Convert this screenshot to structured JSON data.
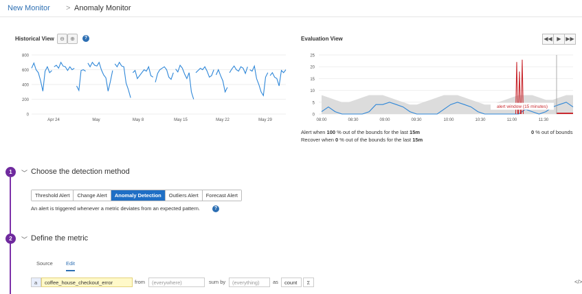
{
  "breadcrumb": {
    "parent": "New Monitor",
    "separator": ">",
    "current": "Anomaly Monitor"
  },
  "historical": {
    "title": "Historical View",
    "zoom_out_icon": "zoom-out-icon",
    "zoom_in_icon": "zoom-in-icon",
    "help_icon": "question-circle-icon"
  },
  "evaluation": {
    "title": "Evaluation View",
    "controls": [
      "rewind-icon",
      "play-icon",
      "fast-forward-icon"
    ],
    "annotation": "alert window (15 minutes)",
    "alert_when": {
      "prefix": "Alert when ",
      "value": "100",
      "middle": " % out of the bounds for the last ",
      "window": "15m"
    },
    "recover_when": {
      "prefix": "Recover when ",
      "value": "0",
      "middle": " % out of the bounds for the last ",
      "window": "15m"
    },
    "out_of_bounds": {
      "value": "0",
      "suffix": " % out of bounds"
    }
  },
  "chart_data": [
    {
      "type": "line",
      "title": "Historical View",
      "x_ticks": [
        "Apr 24",
        "May",
        "May 8",
        "May 15",
        "May 22",
        "May 29"
      ],
      "y_ticks": [
        "0",
        "200",
        "400",
        "600",
        "800"
      ],
      "ylim": [
        0,
        800
      ],
      "series_color": "#2d86d8",
      "segments": [
        [
          620,
          690,
          600,
          560,
          450,
          310,
          580,
          640,
          560,
          590
        ],
        [
          640,
          660,
          620,
          700,
          650,
          640,
          590,
          640,
          600,
          620
        ],
        [
          380,
          320,
          590,
          600,
          580
        ],
        [
          690,
          640,
          700,
          660,
          650,
          700,
          600,
          530,
          490,
          310,
          440,
          590
        ],
        [
          680,
          640,
          700,
          650,
          640,
          420,
          330,
          220
        ],
        [
          560,
          590,
          480,
          520,
          560,
          600,
          580,
          640,
          520,
          500
        ],
        [
          430,
          550,
          600,
          620,
          640,
          600,
          500,
          470,
          560
        ],
        [
          610,
          570,
          660,
          620,
          540,
          480,
          560,
          300,
          200
        ],
        [
          560,
          590,
          620,
          600,
          640,
          580,
          500,
          520,
          600
        ],
        [
          530,
          600,
          520,
          450,
          300,
          360
        ],
        [
          560,
          610,
          650,
          600,
          580,
          640,
          620,
          550,
          640
        ],
        [
          600,
          580,
          650,
          480,
          400,
          300,
          250,
          500,
          560
        ],
        [
          520,
          560,
          500,
          480,
          380,
          590,
          560,
          600
        ]
      ]
    },
    {
      "type": "line",
      "title": "Evaluation View",
      "x_ticks": [
        "08:00",
        "08:30",
        "09:00",
        "09:30",
        "10:00",
        "10:30",
        "11:00",
        "11:30"
      ],
      "y_ticks": [
        "0",
        "5",
        "10",
        "15",
        "20",
        "25"
      ],
      "ylim": [
        0,
        25
      ],
      "series_color": "#2d86d8",
      "anomaly_color": "#c9282e",
      "band_color": "#dcdcdc",
      "series": [
        1,
        3,
        1,
        0,
        0,
        0,
        0,
        1,
        4,
        4,
        5,
        4,
        3,
        1,
        0,
        0,
        0,
        0,
        2,
        4,
        5,
        4,
        3,
        1,
        0,
        0,
        0,
        0,
        0,
        0,
        2,
        1,
        0,
        1,
        3,
        4,
        5,
        3
      ],
      "band_upper": [
        8,
        7,
        6,
        5,
        5,
        6,
        7,
        8,
        8,
        8,
        7,
        6,
        5,
        4,
        4,
        5,
        6,
        7,
        8,
        8,
        8,
        7,
        6,
        5,
        4,
        4,
        5,
        6,
        7,
        8,
        8,
        8,
        7,
        6,
        6,
        7,
        8,
        8
      ],
      "band_lower": [
        0,
        0,
        0,
        0,
        0,
        0,
        0,
        0,
        0,
        0,
        0,
        0,
        0,
        0,
        0,
        0,
        0,
        0,
        0,
        0,
        0,
        0,
        0,
        0,
        0,
        0,
        0,
        0,
        0,
        0,
        0,
        0,
        0,
        0,
        0,
        0,
        0,
        0
      ],
      "anomaly_spikes": [
        22,
        18,
        23
      ]
    }
  ],
  "steps": [
    {
      "number": "1",
      "title": "Choose the detection method"
    },
    {
      "number": "2",
      "title": "Define the metric"
    }
  ],
  "detection_tabs": [
    "Threshold Alert",
    "Change Alert",
    "Anomaly Detection",
    "Outliers Alert",
    "Forecast Alert"
  ],
  "detection_active": "Anomaly Detection",
  "detection_description": "An alert is triggered whenever a metric deviates from an expected pattern.",
  "metric_tabs": {
    "source": "Source",
    "edit": "Edit"
  },
  "query": {
    "letter": "a",
    "metric": "coffee_house_checkout_error",
    "from_label": "from",
    "from_placeholder": "(everywhere)",
    "sumby_label": "sum by",
    "sumby_placeholder": "(everything)",
    "as_label": "as",
    "as_value": "count",
    "sigma": "Σ",
    "code_icon": "</>"
  }
}
